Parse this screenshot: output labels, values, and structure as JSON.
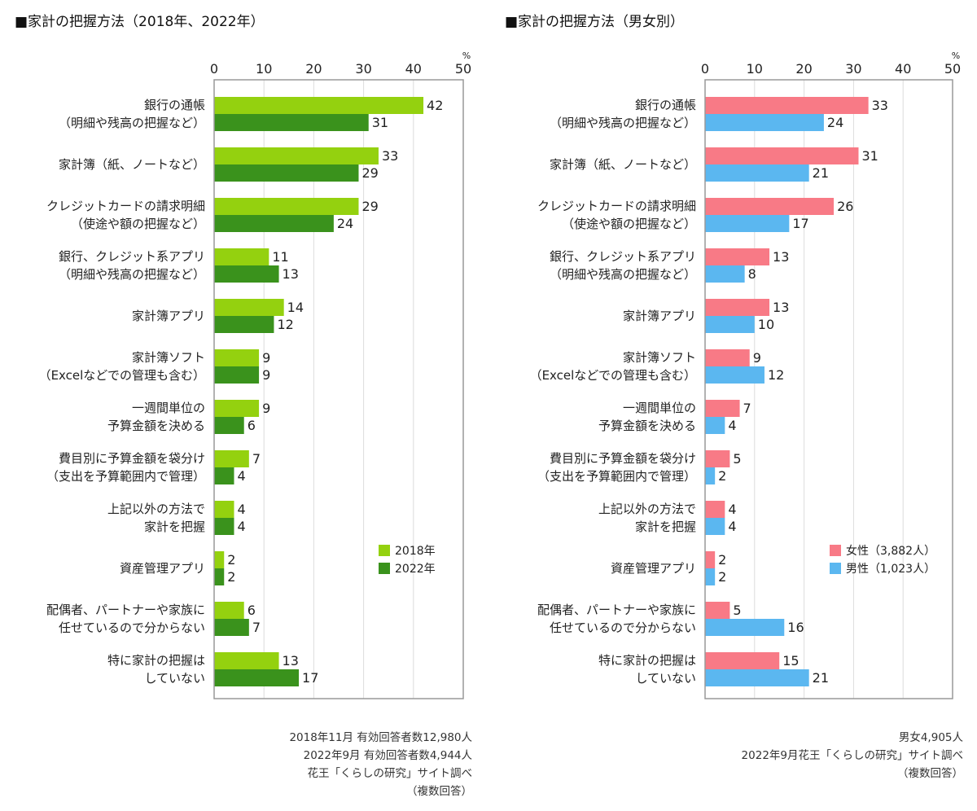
{
  "chart_data": [
    {
      "type": "bar",
      "orientation": "horizontal",
      "title": "■家計の把握方法（2018年、2022年）",
      "unit": "%",
      "xlim": [
        0,
        50
      ],
      "ticks": [
        "0",
        "10",
        "20",
        "30",
        "40",
        "50"
      ],
      "grid": true,
      "legend_position": "right-bottom",
      "categories": [
        [
          "銀行の通帳",
          "（明細や残高の把握など）"
        ],
        [
          "家計簿（紙、ノートなど）"
        ],
        [
          "クレジットカードの請求明細",
          "（使途や額の把握など）"
        ],
        [
          "銀行、クレジット系アプリ",
          "（明細や残高の把握など）"
        ],
        [
          "家計簿アプリ"
        ],
        [
          "家計簿ソフト",
          "（Excelなどでの管理も含む）"
        ],
        [
          "一週間単位の",
          "予算金額を決める"
        ],
        [
          "費目別に予算金額を袋分け",
          "（支出を予算範囲内で管理）"
        ],
        [
          "上記以外の方法で",
          "家計を把握"
        ],
        [
          "資産管理アプリ"
        ],
        [
          "配偶者、パートナーや家族に",
          "任せているので分からない"
        ],
        [
          "特に家計の把握は",
          "していない"
        ]
      ],
      "series": [
        {
          "name": "2018年",
          "color": "#94d10f",
          "values": [
            42,
            33,
            29,
            11,
            14,
            9,
            9,
            7,
            4,
            2,
            6,
            13
          ]
        },
        {
          "name": "2022年",
          "color": "#3a921c",
          "values": [
            31,
            29,
            24,
            13,
            12,
            9,
            6,
            4,
            4,
            2,
            7,
            17
          ]
        }
      ],
      "notes": [
        "2018年11月 有効回答者数12,980人",
        "2022年9月 有効回答者数4,944人",
        "花王「くらしの研究」サイト調べ",
        "（複数回答）"
      ]
    },
    {
      "type": "bar",
      "orientation": "horizontal",
      "title": "■家計の把握方法（男女別）",
      "unit": "%",
      "xlim": [
        0,
        50
      ],
      "ticks": [
        "0",
        "10",
        "20",
        "30",
        "40",
        "50"
      ],
      "grid": true,
      "legend_position": "right-bottom",
      "categories": [
        [
          "銀行の通帳",
          "（明細や残高の把握など）"
        ],
        [
          "家計簿（紙、ノートなど）"
        ],
        [
          "クレジットカードの請求明細",
          "（使途や額の把握など）"
        ],
        [
          "銀行、クレジット系アプリ",
          "（明細や残高の把握など）"
        ],
        [
          "家計簿アプリ"
        ],
        [
          "家計簿ソフト",
          "（Excelなどでの管理も含む）"
        ],
        [
          "一週間単位の",
          "予算金額を決める"
        ],
        [
          "費目別に予算金額を袋分け",
          "（支出を予算範囲内で管理）"
        ],
        [
          "上記以外の方法で",
          "家計を把握"
        ],
        [
          "資産管理アプリ"
        ],
        [
          "配偶者、パートナーや家族に",
          "任せているので分からない"
        ],
        [
          "特に家計の把握は",
          "していない"
        ]
      ],
      "series": [
        {
          "name": "女性（3,882人）",
          "color": "#f87a86",
          "values": [
            33,
            31,
            26,
            13,
            13,
            9,
            7,
            5,
            4,
            2,
            5,
            15
          ]
        },
        {
          "name": "男性（1,023人）",
          "color": "#5bb7f0",
          "values": [
            24,
            21,
            17,
            8,
            10,
            12,
            4,
            2,
            4,
            2,
            16,
            21
          ]
        }
      ],
      "notes": [
        "男女4,905人",
        "2022年9月花王「くらしの研究」サイト調べ",
        "（複数回答）"
      ]
    }
  ]
}
